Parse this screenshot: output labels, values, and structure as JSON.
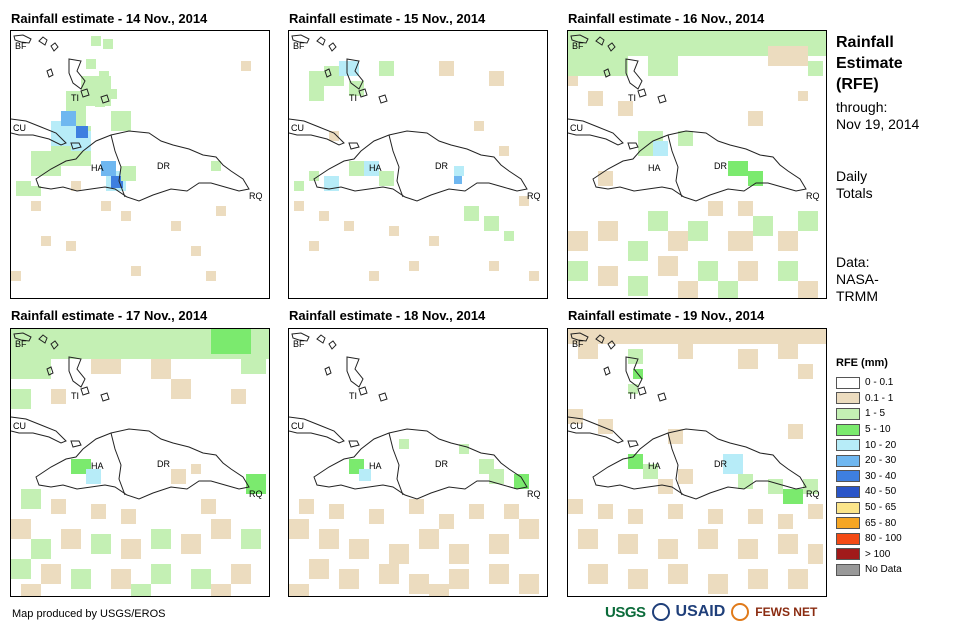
{
  "panels": [
    {
      "title": "Rainfall estimate - 14 Nov., 2014"
    },
    {
      "title": "Rainfall estimate - 15 Nov., 2014"
    },
    {
      "title": "Rainfall estimate - 16 Nov., 2014"
    },
    {
      "title": "Rainfall estimate - 17 Nov., 2014"
    },
    {
      "title": "Rainfall estimate - 18 Nov., 2014"
    },
    {
      "title": "Rainfall estimate - 19 Nov., 2014"
    }
  ],
  "map_labels": {
    "bf": "BF",
    "cu": "CU",
    "ti": "TI",
    "ha": "HA",
    "dr": "DR",
    "rq": "RQ"
  },
  "sidebar": {
    "title_lines": [
      "Rainfall",
      "Estimate",
      "(RFE)"
    ],
    "through_label": "through:",
    "through_date": "Nov 19, 2014",
    "totals_lines": [
      "Daily",
      "Totals"
    ],
    "data_lines": [
      "Data:",
      "NASA-",
      "TRMM"
    ]
  },
  "legend": {
    "title": "RFE (mm)",
    "items": [
      {
        "label": "0 - 0.1",
        "color": "#ffffff"
      },
      {
        "label": "0.1 - 1",
        "color": "#ecdcbf"
      },
      {
        "label": "1 - 5",
        "color": "#c4f0b4"
      },
      {
        "label": "5 - 10",
        "color": "#7bea6e"
      },
      {
        "label": "10 - 20",
        "color": "#b7ecf8"
      },
      {
        "label": "20 - 30",
        "color": "#6fb7f0"
      },
      {
        "label": "30 - 40",
        "color": "#3e7fe0"
      },
      {
        "label": "40 - 50",
        "color": "#2a55c8"
      },
      {
        "label": "50 - 65",
        "color": "#fbe58a"
      },
      {
        "label": "65 - 80",
        "color": "#f6a623"
      },
      {
        "label": "80 - 100",
        "color": "#f44a14"
      },
      {
        "label": "> 100",
        "color": "#a11a1a"
      },
      {
        "label": "No Data",
        "color": "#999999"
      }
    ]
  },
  "footer": {
    "credit": "Map produced by USGS/EROS",
    "logos": {
      "usgs": "USGS",
      "usaid": "USAID",
      "fews": "FEWS NET"
    }
  }
}
